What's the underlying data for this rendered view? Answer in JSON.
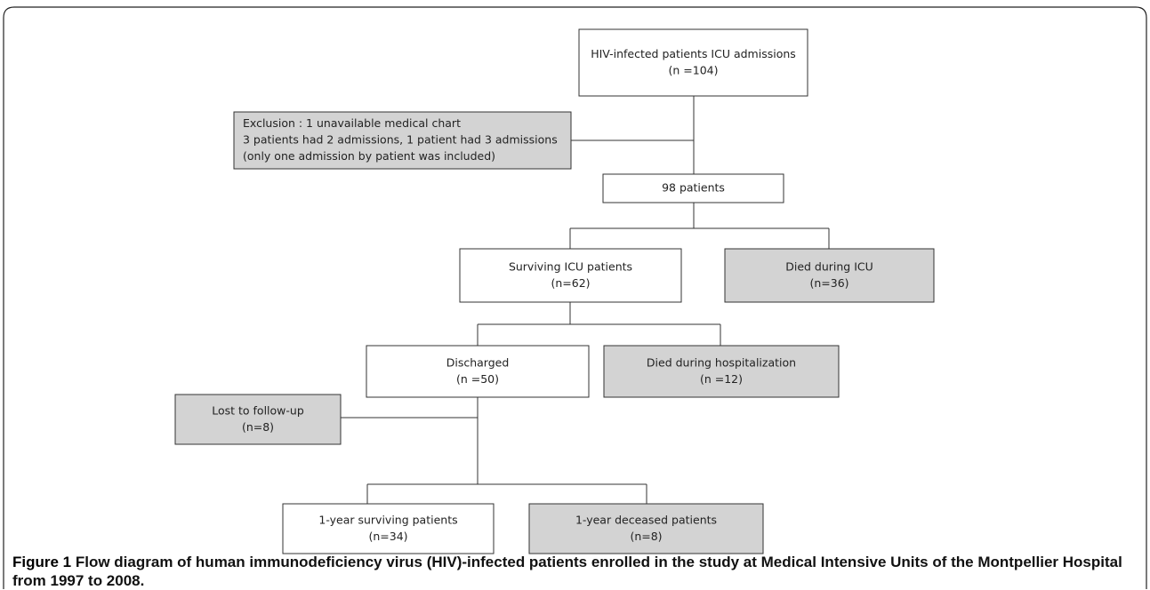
{
  "nodes": [
    {
      "lines": [
        "HIV-infected patients ICU admissions",
        "(n =104)"
      ]
    },
    {
      "lines": [
        "Exclusion : 1 unavailable medical chart",
        "3 patients had 2 admissions, 1 patient had 3 admissions",
        "(only one admission by patient was included)"
      ]
    },
    {
      "lines": [
        "98 patients"
      ]
    },
    {
      "lines": [
        "Surviving ICU patients",
        "(n=62)"
      ]
    },
    {
      "lines": [
        "Died during ICU",
        "(n=36)"
      ]
    },
    {
      "lines": [
        "Discharged",
        "(n =50)"
      ]
    },
    {
      "lines": [
        "Died during hospitalization",
        "(n =12)"
      ]
    },
    {
      "lines": [
        "Lost to follow-up",
        "(n=8)"
      ]
    },
    {
      "lines": [
        "1-year surviving patients",
        "(n=34)"
      ]
    },
    {
      "lines": [
        "1-year deceased patients",
        "(n=8)"
      ]
    }
  ],
  "caption": {
    "label": "Figure 1",
    "text": "Flow diagram of human immunodeficiency virus (HIV)-infected patients enrolled in the study at Medical Intensive Units of the Montpellier Hospital from 1997 to 2008."
  }
}
